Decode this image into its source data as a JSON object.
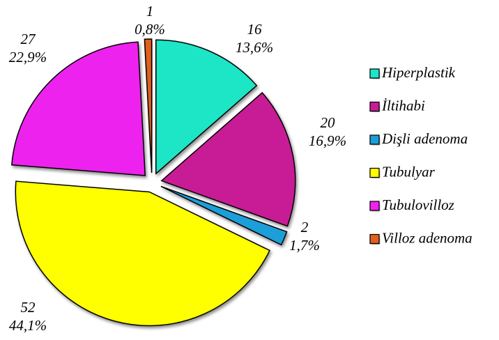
{
  "chart_data": {
    "type": "pie",
    "categories": [
      "Hiperplastik",
      "İltihabi",
      "Dişli adenoma",
      "Tubulyar",
      "Tubulovilloz",
      "Villoz adenoma"
    ],
    "values": [
      16,
      20,
      2,
      52,
      27,
      1
    ],
    "percent_labels": [
      "13,6%",
      "16,9%",
      "1,7%",
      "44,1%",
      "22,9%",
      "0,8%"
    ],
    "colors": [
      "#1ee6c6",
      "#c81e96",
      "#1a9ed8",
      "#ffff00",
      "#ee22ee",
      "#e0601a"
    ],
    "legend": "right"
  }
}
